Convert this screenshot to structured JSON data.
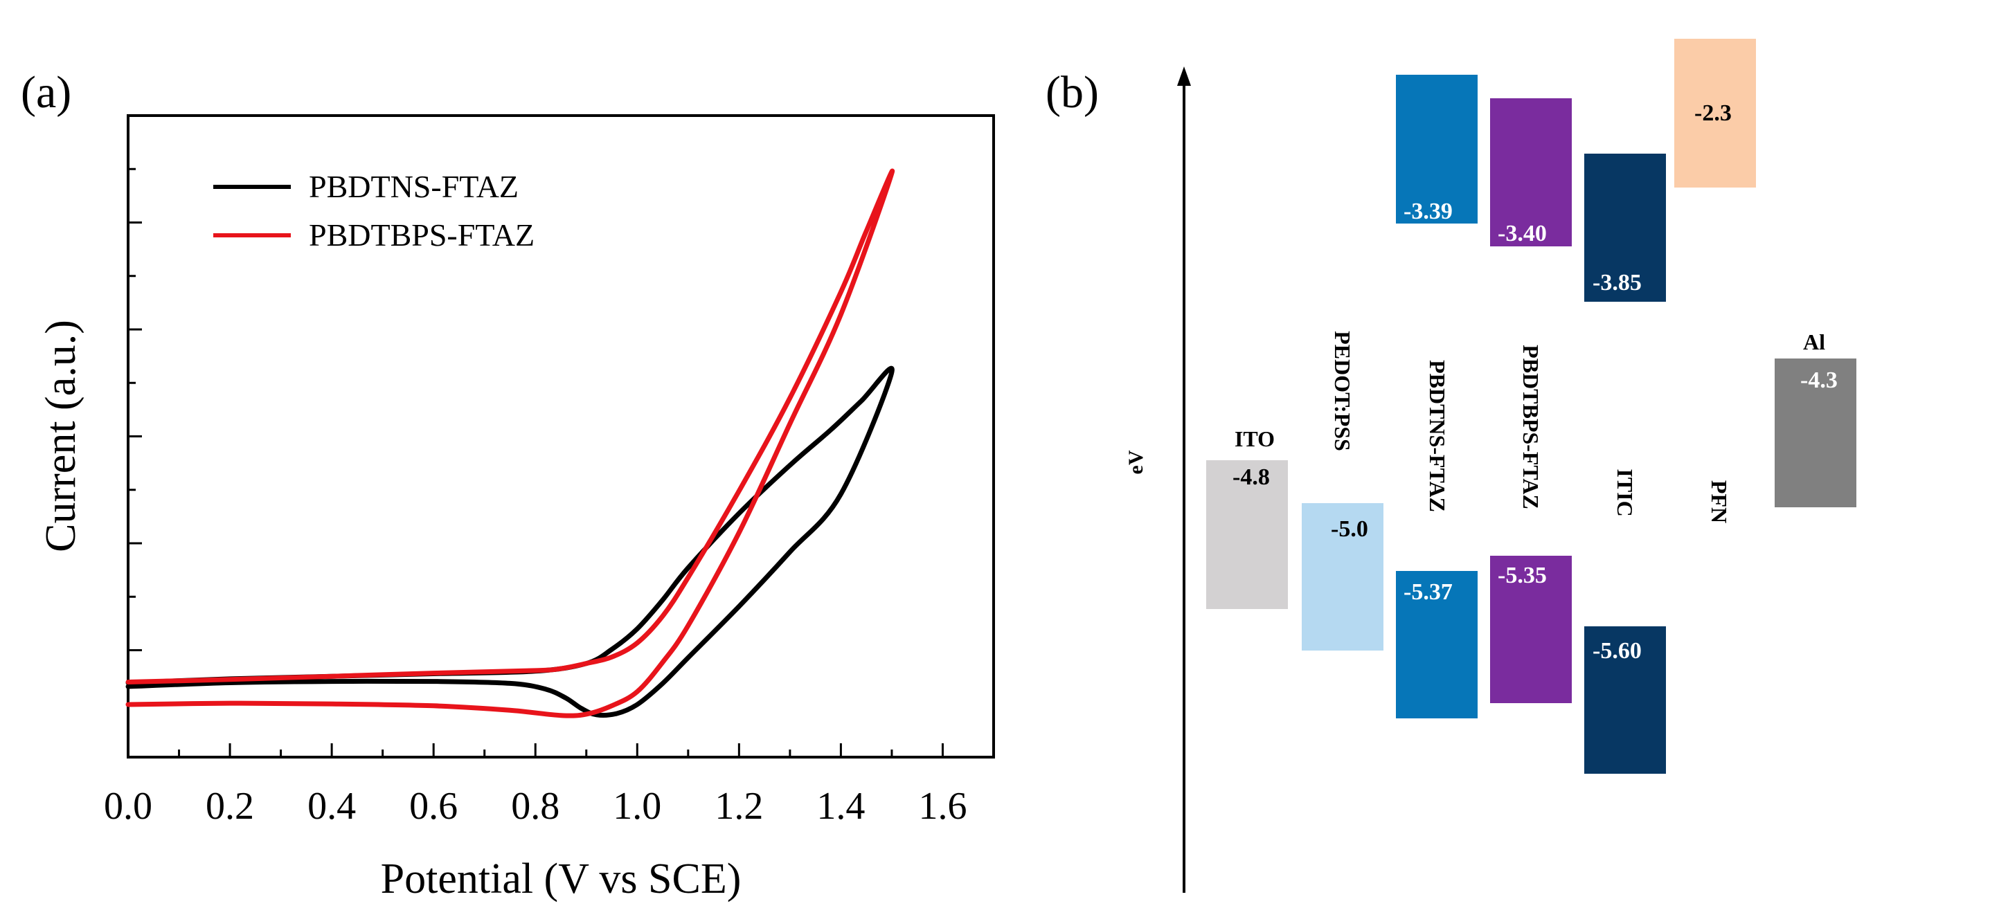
{
  "chart_data": [
    {
      "panel_label": "(a)",
      "type": "line",
      "title": "",
      "xlabel": "Potential (V vs SCE)",
      "ylabel": "Current (a.u.)",
      "xlim": [
        0.0,
        1.7
      ],
      "ylim": [
        0,
        100
      ],
      "x_ticks": [
        "0.0",
        "0.2",
        "0.4",
        "0.6",
        "0.8",
        "1.0",
        "1.2",
        "1.4",
        "1.6"
      ],
      "x_tick_values": [
        0.0,
        0.2,
        0.4,
        0.6,
        0.8,
        1.0,
        1.2,
        1.4,
        1.6
      ],
      "y_tick_labels_shown": false,
      "legend_position": "top-left",
      "series": [
        {
          "name": "PBDTNS-FTAZ",
          "color": "#000000",
          "points": [
            [
              0.0,
              11.0
            ],
            [
              0.2,
              11.6
            ],
            [
              0.4,
              11.8
            ],
            [
              0.6,
              11.8
            ],
            [
              0.75,
              11.5
            ],
            [
              0.82,
              10.6
            ],
            [
              0.86,
              9.2
            ],
            [
              0.89,
              7.6
            ],
            [
              0.92,
              6.6
            ],
            [
              0.96,
              6.8
            ],
            [
              1.0,
              8.2
            ],
            [
              1.05,
              11.5
            ],
            [
              1.1,
              15.5
            ],
            [
              1.2,
              23.5
            ],
            [
              1.3,
              32.0
            ],
            [
              1.4,
              41.0
            ],
            [
              1.5,
              60.0
            ],
            [
              1.44,
              55.5
            ],
            [
              1.38,
              51.0
            ],
            [
              1.3,
              45.5
            ],
            [
              1.2,
              38.0
            ],
            [
              1.1,
              29.5
            ],
            [
              1.05,
              24.5
            ],
            [
              1.0,
              20.0
            ],
            [
              0.95,
              16.8
            ],
            [
              0.9,
              14.6
            ],
            [
              0.8,
              13.4
            ],
            [
              0.6,
              13.0
            ],
            [
              0.4,
              12.6
            ],
            [
              0.2,
              12.2
            ],
            [
              0.0,
              11.6
            ]
          ]
        },
        {
          "name": "PBDTBPS-FTAZ",
          "color": "#e8141b",
          "points": [
            [
              0.0,
              8.2
            ],
            [
              0.2,
              8.4
            ],
            [
              0.4,
              8.3
            ],
            [
              0.6,
              8.0
            ],
            [
              0.75,
              7.3
            ],
            [
              0.85,
              6.5
            ],
            [
              0.9,
              6.7
            ],
            [
              0.95,
              8.0
            ],
            [
              1.0,
              10.2
            ],
            [
              1.05,
              14.8
            ],
            [
              1.1,
              20.5
            ],
            [
              1.2,
              35.0
            ],
            [
              1.3,
              52.0
            ],
            [
              1.4,
              69.0
            ],
            [
              1.5,
              91.0
            ],
            [
              1.45,
              82.0
            ],
            [
              1.4,
              72.5
            ],
            [
              1.3,
              56.0
            ],
            [
              1.2,
              41.5
            ],
            [
              1.1,
              28.0
            ],
            [
              1.05,
              22.0
            ],
            [
              1.0,
              17.8
            ],
            [
              0.95,
              15.6
            ],
            [
              0.9,
              14.6
            ],
            [
              0.85,
              13.8
            ],
            [
              0.8,
              13.5
            ],
            [
              0.6,
              13.1
            ],
            [
              0.4,
              12.6
            ],
            [
              0.2,
              12.1
            ],
            [
              0.0,
              11.7
            ]
          ]
        }
      ]
    },
    {
      "panel_label": "(b)",
      "type": "energy-level-diagram",
      "ylabel": "eV",
      "unit": "eV",
      "materials": [
        {
          "name": "ITO",
          "level": "-4.8",
          "value": -4.8,
          "color": "#d3d1d2",
          "text_color": "#000000"
        },
        {
          "name": "PEDOT:PSS",
          "level": "-5.0",
          "value": -5.0,
          "color": "#b5d9f1",
          "text_color": "#000000"
        },
        {
          "name": "PBDTNS-FTAZ",
          "lumo": "-3.39",
          "homo": "-5.37",
          "lumo_value": -3.39,
          "homo_value": -5.37,
          "color": "#0676b8",
          "text_color": "#ffffff"
        },
        {
          "name": "PBDTBPS-FTAZ",
          "lumo": "-3.40",
          "homo": "-5.35",
          "lumo_value": -3.4,
          "homo_value": -5.35,
          "color": "#7a2c9e",
          "text_color": "#ffffff"
        },
        {
          "name": "ITIC",
          "lumo": "-3.85",
          "homo": "-5.60",
          "lumo_value": -3.85,
          "homo_value": -5.6,
          "color": "#073763",
          "text_color": "#ffffff"
        },
        {
          "name": "PFN",
          "level": "-2.3",
          "value": -2.3,
          "color": "#fbcca8",
          "text_color": "#000000"
        },
        {
          "name": "Al",
          "level": "-4.3",
          "value": -4.3,
          "color": "#808080",
          "text_color": "#ffffff"
        }
      ]
    }
  ]
}
